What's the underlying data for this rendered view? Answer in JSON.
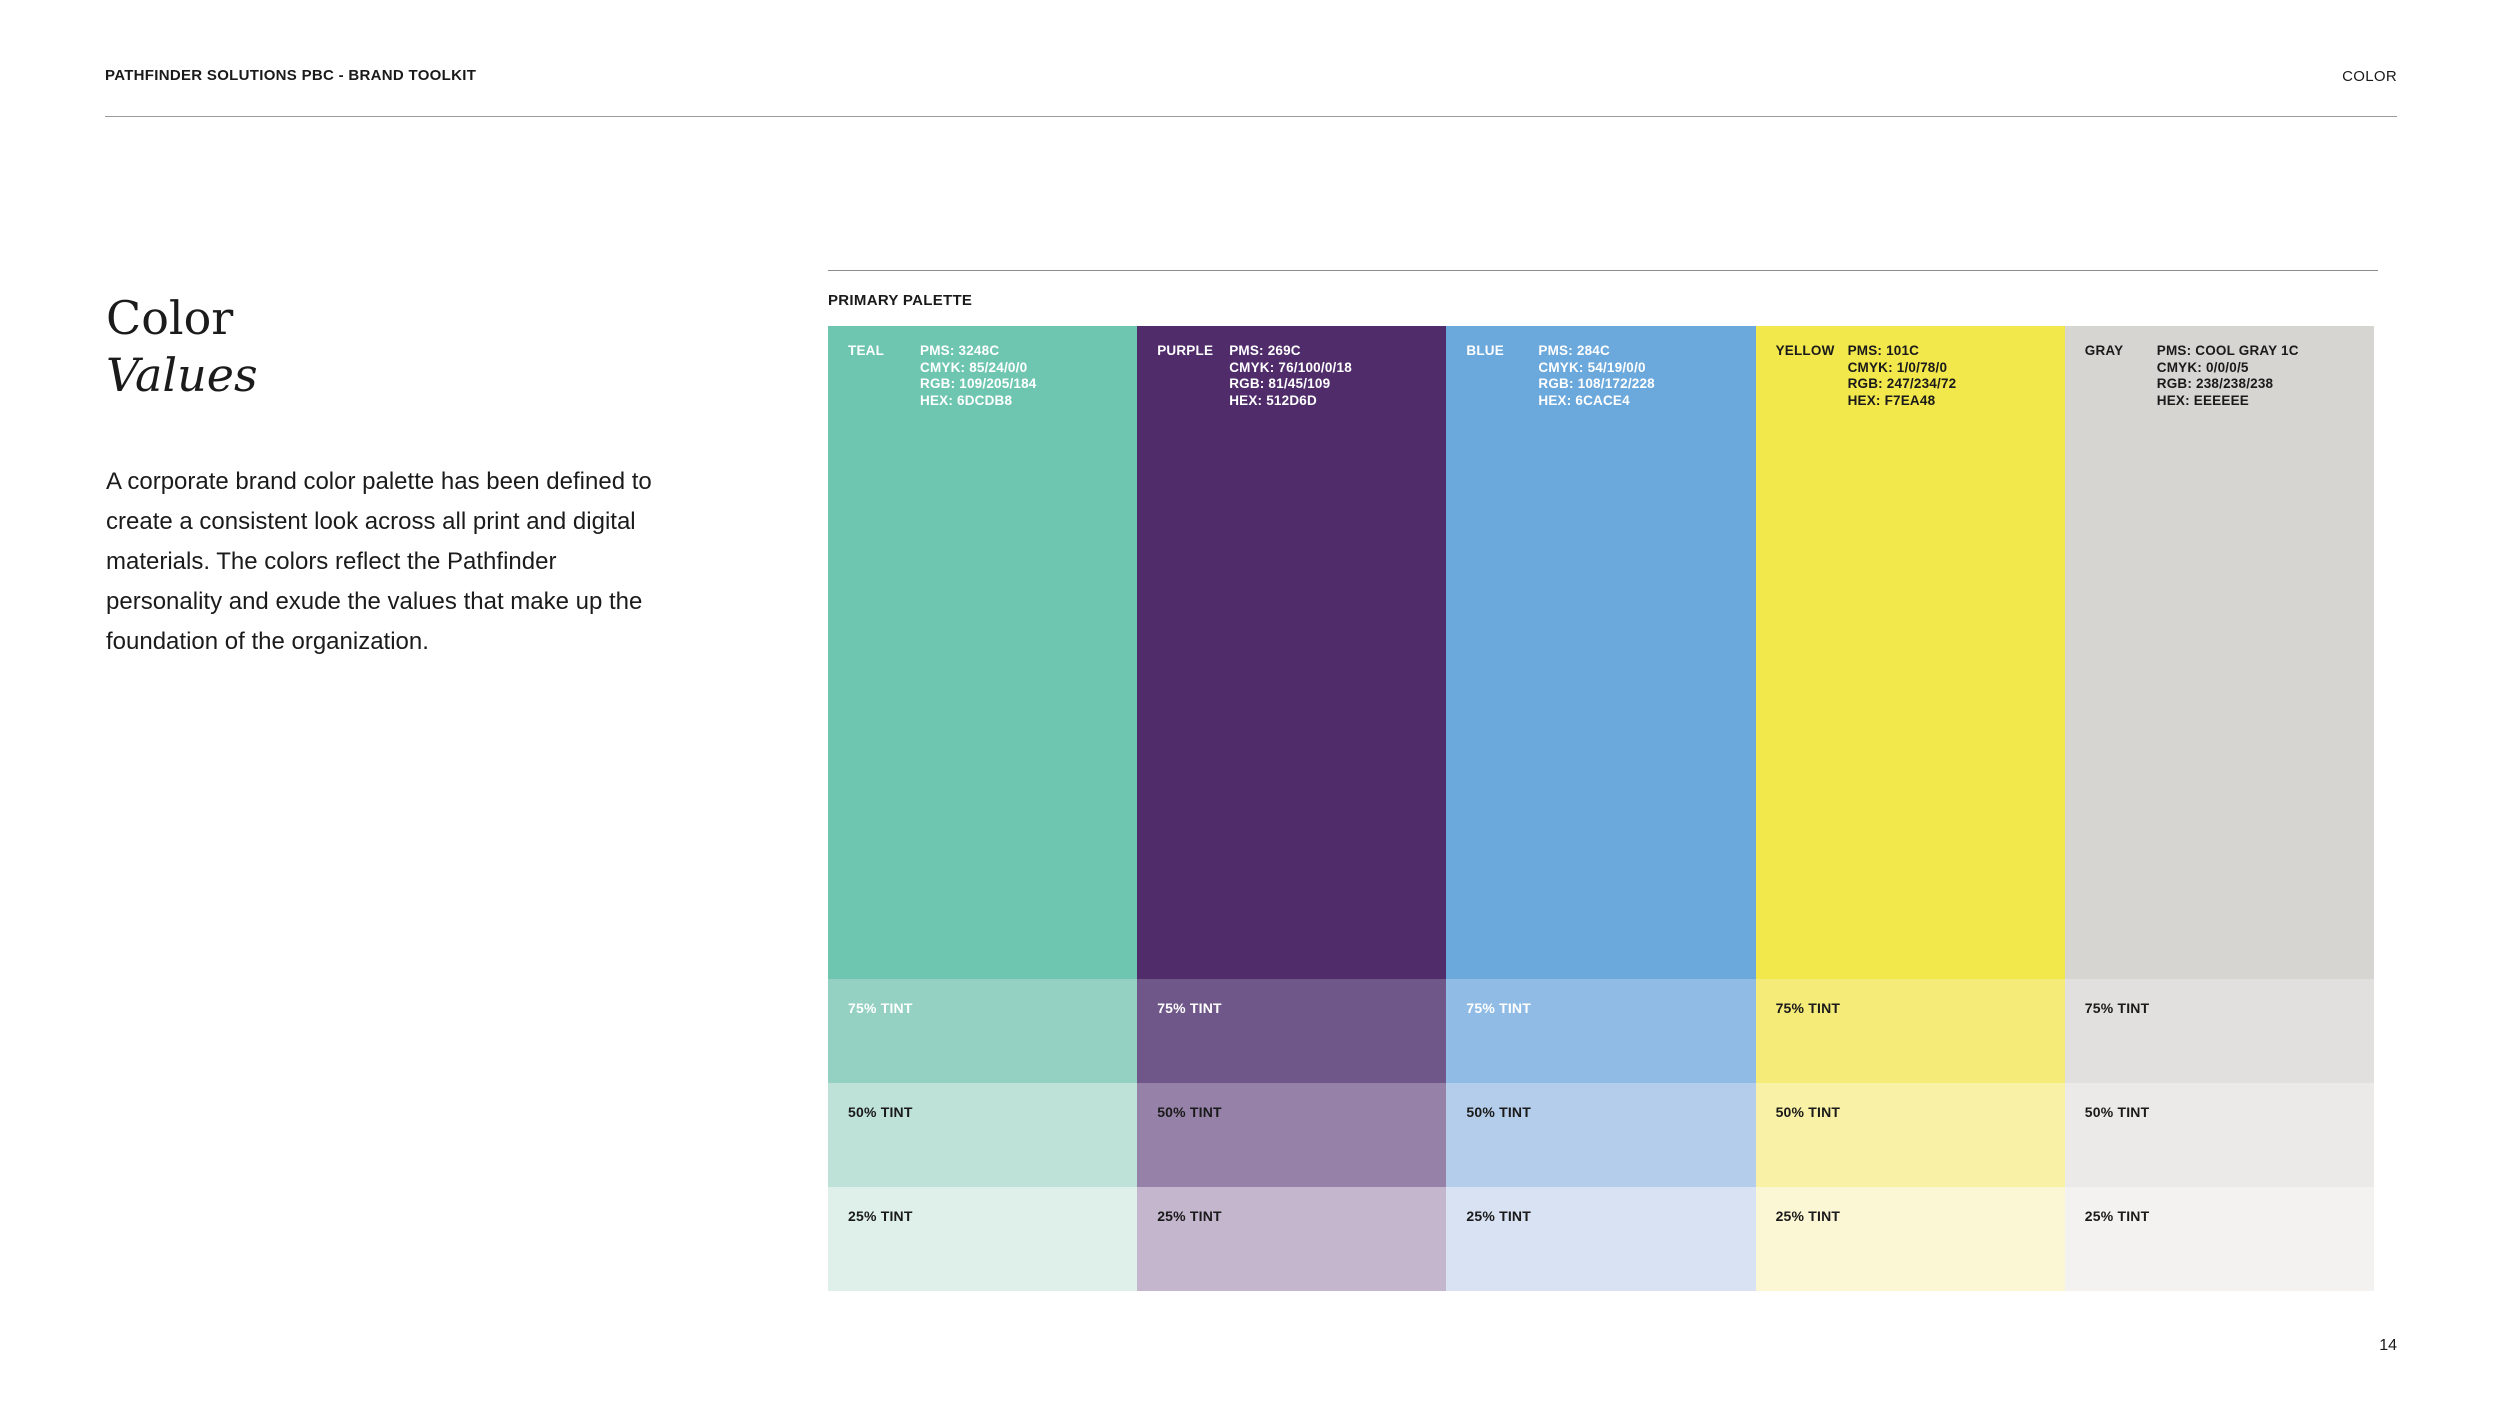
{
  "header": {
    "title": "PATHFINDER SOLUTIONS PBC - BRAND TOOLKIT",
    "section": "COLOR"
  },
  "intro": {
    "title_line1": "Color",
    "title_line2": "Values",
    "body": "A corporate brand color palette has been defined to create a consistent look across all print and digital materials. The colors reflect the Pathfinder personality and exude the values that make up the foundation of the organization."
  },
  "palette": {
    "label": "PRIMARY PALETTE",
    "tint_labels": [
      "75% TINT",
      "50% TINT",
      "25% TINT"
    ],
    "swatches": [
      {
        "name": "TEAL",
        "pms": "PMS: 3248C",
        "cmyk": "CMYK: 85/24/0/0",
        "rgb": "RGB: 109/205/184",
        "hex": "HEX: 6DCDB8",
        "color": "#6EC6B1",
        "text_color": "#FFFFFF",
        "tints": [
          "#95D1C2",
          "#BEE1D8",
          "#DFF0EA"
        ],
        "tint_text_colors": [
          "#FFFFFF",
          "#1A1A1A",
          "#1A1A1A"
        ]
      },
      {
        "name": "PURPLE",
        "pms": "PMS: 269C",
        "cmyk": "CMYK: 76/100/0/18",
        "rgb": "RGB: 81/45/109",
        "hex": "HEX: 512D6D",
        "color": "#502C6B",
        "text_color": "#FFFFFF",
        "tints": [
          "#6F578A",
          "#9681A8",
          "#C3B6CD"
        ],
        "tint_text_colors": [
          "#FFFFFF",
          "#1A1A1A",
          "#1A1A1A"
        ]
      },
      {
        "name": "BLUE",
        "pms": "PMS: 284C",
        "cmyk": "CMYK: 54/19/0/0",
        "rgb": "RGB: 108/172/228",
        "hex": "HEX: 6CACE4",
        "color": "#6BA8DC",
        "text_color": "#FFFFFF",
        "tints": [
          "#90BBE4",
          "#B4CDEA",
          "#D8E2F2"
        ],
        "tint_text_colors": [
          "#FFFFFF",
          "#1A1A1A",
          "#1A1A1A"
        ]
      },
      {
        "name": "YELLOW",
        "pms": "PMS: 101C",
        "cmyk": "CMYK: 1/0/78/0",
        "rgb": "RGB: 247/234/72",
        "hex": "HEX: F7EA48",
        "color": "#F2E74B",
        "text_color": "#1A1A1A",
        "tints": [
          "#F4EB79",
          "#F8F1A6",
          "#FBF7D4"
        ],
        "tint_text_colors": [
          "#1A1A1A",
          "#1A1A1A",
          "#1A1A1A"
        ]
      },
      {
        "name": "GRAY",
        "pms": "PMS: COOL GRAY 1C",
        "cmyk": "CMYK: 0/0/0/5",
        "rgb": "RGB: 238/238/238",
        "hex": "HEX: EEEEEE",
        "color": "#D6D5D2",
        "text_color": "#1A1A1A",
        "tints": [
          "#E1E0DE",
          "#EBEAE8",
          "#F3F2F0"
        ],
        "tint_text_colors": [
          "#1A1A1A",
          "#1A1A1A",
          "#1A1A1A"
        ]
      }
    ]
  },
  "footer": {
    "page_number": "14"
  }
}
